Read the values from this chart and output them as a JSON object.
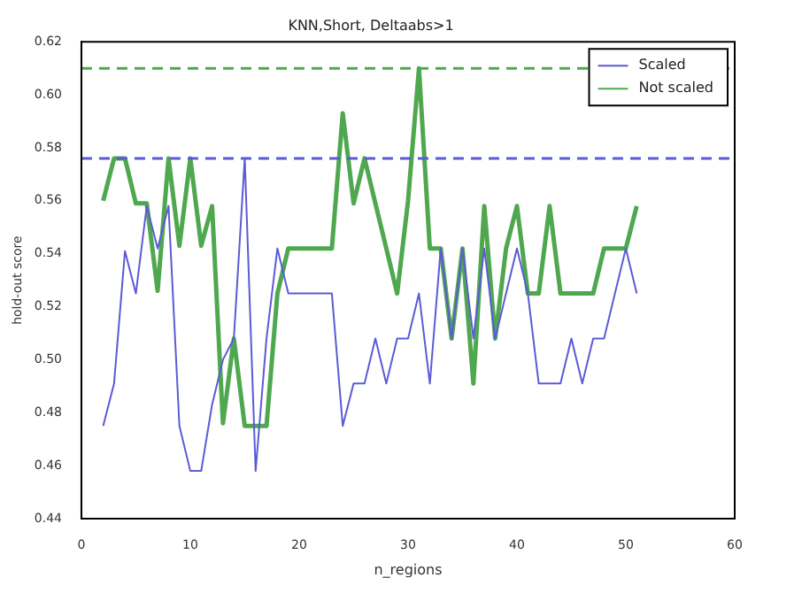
{
  "chart_data": {
    "type": "line",
    "title": "KNN,Short, Deltaabs>1",
    "xlabel": "n_regions",
    "ylabel": "hold-out score",
    "x": [
      2,
      3,
      4,
      5,
      6,
      7,
      8,
      9,
      10,
      11,
      12,
      13,
      14,
      15,
      16,
      17,
      18,
      19,
      20,
      21,
      22,
      23,
      24,
      25,
      26,
      27,
      28,
      29,
      30,
      31,
      32,
      33,
      34,
      35,
      36,
      37,
      38,
      39,
      40,
      41,
      42,
      43,
      44,
      45,
      46,
      47,
      48,
      49,
      50,
      51
    ],
    "series": [
      {
        "name": "Scaled",
        "color": "#5b5bd6",
        "values": [
          0.475,
          0.491,
          0.541,
          0.525,
          0.558,
          0.542,
          0.558,
          0.475,
          0.458,
          0.458,
          0.483,
          0.5,
          0.508,
          0.576,
          0.458,
          0.508,
          0.542,
          0.525,
          0.525,
          0.525,
          0.525,
          0.525,
          0.475,
          0.491,
          0.491,
          0.508,
          0.491,
          0.508,
          0.508,
          0.525,
          0.491,
          0.542,
          0.508,
          0.542,
          0.508,
          0.542,
          0.508,
          0.525,
          0.542,
          0.525,
          0.491,
          0.491,
          0.491,
          0.508,
          0.491,
          0.508,
          0.508,
          0.525,
          0.542,
          0.525
        ]
      },
      {
        "name": "Not scaled",
        "color": "#4fa84f",
        "values": [
          0.56,
          0.576,
          0.576,
          0.559,
          0.559,
          0.526,
          0.576,
          0.543,
          0.576,
          0.543,
          0.558,
          0.476,
          0.508,
          0.475,
          0.475,
          0.475,
          0.525,
          0.542,
          0.542,
          0.542,
          0.542,
          0.542,
          0.593,
          0.559,
          0.576,
          0.559,
          0.542,
          0.525,
          0.56,
          0.61,
          0.542,
          0.542,
          0.508,
          0.542,
          0.491,
          0.558,
          0.508,
          0.542,
          0.558,
          0.525,
          0.525,
          0.558,
          0.525,
          0.525,
          0.525,
          0.525,
          0.542,
          0.542,
          0.542,
          0.558
        ]
      }
    ],
    "xlim": [
      0,
      60
    ],
    "xticks": [
      0,
      10,
      20,
      30,
      40,
      50,
      60
    ],
    "ylim": [
      0.44,
      0.62
    ],
    "yticks": [
      0.44,
      0.46,
      0.48,
      {
        "value": 0.5,
        "label": "0.50"
      },
      0.52,
      0.54,
      0.56,
      0.58,
      {
        "value": 0.6,
        "label": "0.60"
      },
      0.62
    ],
    "ref_lines": [
      {
        "axis": "y",
        "value": 0.576,
        "color": "#5b5bd6",
        "line_style": "dashed"
      },
      {
        "axis": "y",
        "value": 0.61,
        "color": "#4fa84f",
        "line_style": "dashed"
      }
    ],
    "grid": false,
    "legend": "top right",
    "marker": "none",
    "line_style": "solid"
  }
}
